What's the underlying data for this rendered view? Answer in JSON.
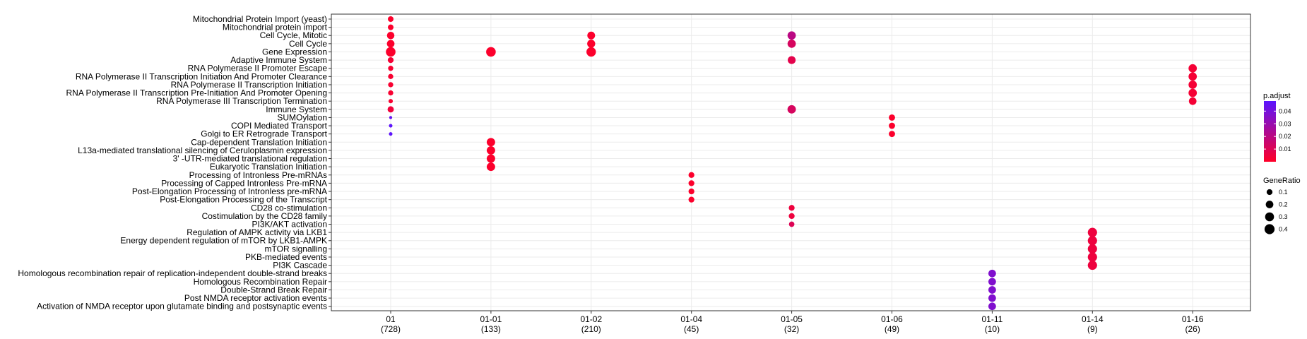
{
  "chart_data": {
    "type": "scatter",
    "title": "",
    "xlabel": "",
    "ylabel": "",
    "grid": true,
    "legend_placement": "right",
    "x_categories": [
      {
        "label": "01",
        "count": "(728)"
      },
      {
        "label": "01-01",
        "count": "(133)"
      },
      {
        "label": "01-02",
        "count": "(210)"
      },
      {
        "label": "01-04",
        "count": "(45)"
      },
      {
        "label": "01-05",
        "count": "(32)"
      },
      {
        "label": "01-06",
        "count": "(49)"
      },
      {
        "label": "01-11",
        "count": "(10)"
      },
      {
        "label": "01-14",
        "count": "(9)"
      },
      {
        "label": "01-16",
        "count": "(26)"
      }
    ],
    "y_categories": [
      "Mitochondrial Protein Import (yeast)",
      "Mitochondrial protein import",
      "Cell Cycle, Mitotic",
      "Cell Cycle",
      "Gene Expression",
      "Adaptive Immune System",
      "RNA Polymerase II Promoter Escape",
      "RNA Polymerase II Transcription Initiation And Promoter Clearance",
      "RNA Polymerase II Transcription Initiation",
      "RNA Polymerase II Transcription Pre-Initiation And Promoter Opening",
      "RNA Polymerase III Transcription Termination",
      "Immune System",
      "SUMOylation",
      "COPI Mediated Transport",
      "Golgi to ER Retrograde Transport",
      "Cap-dependent Translation Initiation",
      "L13a-mediated translational silencing of Ceruloplasmin expression",
      "3' -UTR-mediated translational regulation",
      "Eukaryotic Translation Initiation",
      "Processing of Intronless Pre-mRNAs",
      "Processing of Capped Intronless Pre-mRNA",
      "Post-Elongation Processing of Intronless pre-mRNA",
      "Post-Elongation Processing of the Transcript",
      "CD28 co-stimulation",
      "Costimulation by the CD28 family",
      "PI3K/AKT activation",
      "Regulation of AMPK activity via LKB1",
      "Energy dependent regulation of mTOR by LKB1-AMPK",
      "mTOR signalling",
      "PKB-mediated events",
      "PI3K Cascade",
      "Homologous recombination repair of replication-independent double-strand breaks",
      "Homologous Recombination Repair",
      "Double-Strand Break Repair",
      "Post NMDA receptor activation events",
      "Activation of NMDA receptor upon glutamate binding and postsynaptic events"
    ],
    "points": [
      {
        "x": "01",
        "y": "Mitochondrial Protein Import (yeast)",
        "gene_ratio": 0.09,
        "p_adjust": 0.001
      },
      {
        "x": "01",
        "y": "Mitochondrial protein import",
        "gene_ratio": 0.09,
        "p_adjust": 0.001
      },
      {
        "x": "01",
        "y": "Cell Cycle, Mitotic",
        "gene_ratio": 0.19,
        "p_adjust": 0.001
      },
      {
        "x": "01",
        "y": "Cell Cycle",
        "gene_ratio": 0.2,
        "p_adjust": 0.001
      },
      {
        "x": "01",
        "y": "Gene Expression",
        "gene_ratio": 0.36,
        "p_adjust": 0.001
      },
      {
        "x": "01",
        "y": "Adaptive Immune System",
        "gene_ratio": 0.1,
        "p_adjust": 0.003
      },
      {
        "x": "01",
        "y": "RNA Polymerase II Promoter Escape",
        "gene_ratio": 0.07,
        "p_adjust": 0.002
      },
      {
        "x": "01",
        "y": "RNA Polymerase II Transcription Initiation And Promoter Clearance",
        "gene_ratio": 0.07,
        "p_adjust": 0.002
      },
      {
        "x": "01",
        "y": "RNA Polymerase II Transcription Initiation",
        "gene_ratio": 0.07,
        "p_adjust": 0.002
      },
      {
        "x": "01",
        "y": "RNA Polymerase II Transcription Pre-Initiation And Promoter Opening",
        "gene_ratio": 0.07,
        "p_adjust": 0.002
      },
      {
        "x": "01",
        "y": "RNA Polymerase III Transcription Termination",
        "gene_ratio": 0.04,
        "p_adjust": 0.002
      },
      {
        "x": "01",
        "y": "Immune System",
        "gene_ratio": 0.12,
        "p_adjust": 0.004
      },
      {
        "x": "01",
        "y": "SUMOylation",
        "gene_ratio": 0.01,
        "p_adjust": 0.045
      },
      {
        "x": "01",
        "y": "COPI Mediated Transport",
        "gene_ratio": 0.02,
        "p_adjust": 0.047
      },
      {
        "x": "01",
        "y": "Golgi to ER Retrograde Transport",
        "gene_ratio": 0.02,
        "p_adjust": 0.047
      },
      {
        "x": "01-01",
        "y": "Gene Expression",
        "gene_ratio": 0.36,
        "p_adjust": 0.001
      },
      {
        "x": "01-01",
        "y": "Cap-dependent Translation Initiation",
        "gene_ratio": 0.26,
        "p_adjust": 0.001
      },
      {
        "x": "01-01",
        "y": "L13a-mediated translational silencing of Ceruloplasmin expression",
        "gene_ratio": 0.26,
        "p_adjust": 0.001
      },
      {
        "x": "01-01",
        "y": "3' -UTR-mediated translational regulation",
        "gene_ratio": 0.26,
        "p_adjust": 0.001
      },
      {
        "x": "01-01",
        "y": "Eukaryotic Translation Initiation",
        "gene_ratio": 0.26,
        "p_adjust": 0.001
      },
      {
        "x": "01-02",
        "y": "Cell Cycle, Mitotic",
        "gene_ratio": 0.21,
        "p_adjust": 0.001
      },
      {
        "x": "01-02",
        "y": "Cell Cycle",
        "gene_ratio": 0.23,
        "p_adjust": 0.001
      },
      {
        "x": "01-02",
        "y": "Gene Expression",
        "gene_ratio": 0.35,
        "p_adjust": 0.001
      },
      {
        "x": "01-04",
        "y": "Processing of Intronless Pre-mRNAs",
        "gene_ratio": 0.1,
        "p_adjust": 0.001
      },
      {
        "x": "01-04",
        "y": "Processing of Capped Intronless Pre-mRNA",
        "gene_ratio": 0.1,
        "p_adjust": 0.001
      },
      {
        "x": "01-04",
        "y": "Post-Elongation Processing of Intronless pre-mRNA",
        "gene_ratio": 0.1,
        "p_adjust": 0.001
      },
      {
        "x": "01-04",
        "y": "Post-Elongation Processing of the Transcript",
        "gene_ratio": 0.1,
        "p_adjust": 0.001
      },
      {
        "x": "01-05",
        "y": "Cell Cycle, Mitotic",
        "gene_ratio": 0.25,
        "p_adjust": 0.02
      },
      {
        "x": "01-05",
        "y": "Cell Cycle",
        "gene_ratio": 0.25,
        "p_adjust": 0.012
      },
      {
        "x": "01-05",
        "y": "Adaptive Immune System",
        "gene_ratio": 0.22,
        "p_adjust": 0.008
      },
      {
        "x": "01-05",
        "y": "Immune System",
        "gene_ratio": 0.26,
        "p_adjust": 0.012
      },
      {
        "x": "01-05",
        "y": "CD28 co-stimulation",
        "gene_ratio": 0.1,
        "p_adjust": 0.005
      },
      {
        "x": "01-05",
        "y": "Costimulation by the CD28 family",
        "gene_ratio": 0.1,
        "p_adjust": 0.005
      },
      {
        "x": "01-05",
        "y": "PI3K/AKT activation",
        "gene_ratio": 0.08,
        "p_adjust": 0.01
      },
      {
        "x": "01-06",
        "y": "SUMOylation",
        "gene_ratio": 0.12,
        "p_adjust": 0.001
      },
      {
        "x": "01-06",
        "y": "COPI Mediated Transport",
        "gene_ratio": 0.12,
        "p_adjust": 0.001
      },
      {
        "x": "01-06",
        "y": "Golgi to ER Retrograde Transport",
        "gene_ratio": 0.12,
        "p_adjust": 0.001
      },
      {
        "x": "01-11",
        "y": "Homologous recombination repair of replication-independent double-strand breaks",
        "gene_ratio": 0.2,
        "p_adjust": 0.037
      },
      {
        "x": "01-11",
        "y": "Homologous Recombination Repair",
        "gene_ratio": 0.2,
        "p_adjust": 0.037
      },
      {
        "x": "01-11",
        "y": "Double-Strand Break Repair",
        "gene_ratio": 0.2,
        "p_adjust": 0.037
      },
      {
        "x": "01-11",
        "y": "Post NMDA receptor activation events",
        "gene_ratio": 0.2,
        "p_adjust": 0.037
      },
      {
        "x": "01-11",
        "y": "Activation of NMDA receptor upon glutamate binding and postsynaptic events",
        "gene_ratio": 0.2,
        "p_adjust": 0.037
      },
      {
        "x": "01-14",
        "y": "Regulation of AMPK activity via LKB1",
        "gene_ratio": 0.33,
        "p_adjust": 0.005
      },
      {
        "x": "01-14",
        "y": "Energy dependent regulation of mTOR by LKB1-AMPK",
        "gene_ratio": 0.33,
        "p_adjust": 0.005
      },
      {
        "x": "01-14",
        "y": "mTOR signalling",
        "gene_ratio": 0.33,
        "p_adjust": 0.005
      },
      {
        "x": "01-14",
        "y": "PKB-mediated events",
        "gene_ratio": 0.33,
        "p_adjust": 0.005
      },
      {
        "x": "01-14",
        "y": "PI3K Cascade",
        "gene_ratio": 0.33,
        "p_adjust": 0.005
      },
      {
        "x": "01-16",
        "y": "RNA Polymerase II Promoter Escape",
        "gene_ratio": 0.25,
        "p_adjust": 0.003
      },
      {
        "x": "01-16",
        "y": "RNA Polymerase II Transcription Initiation And Promoter Clearance",
        "gene_ratio": 0.25,
        "p_adjust": 0.003
      },
      {
        "x": "01-16",
        "y": "RNA Polymerase II Transcription Initiation",
        "gene_ratio": 0.25,
        "p_adjust": 0.003
      },
      {
        "x": "01-16",
        "y": "RNA Polymerase II Transcription Pre-Initiation And Promoter Opening",
        "gene_ratio": 0.25,
        "p_adjust": 0.003
      },
      {
        "x": "01-16",
        "y": "RNA Polymerase III Transcription Termination",
        "gene_ratio": 0.2,
        "p_adjust": 0.003
      }
    ],
    "color_legend": {
      "title": "p.adjust",
      "ticks": [
        0.04,
        0.03,
        0.02,
        0.01
      ],
      "tick_labels": [
        "0.04",
        "0.03",
        "0.02",
        "0.01"
      ],
      "range": [
        0.0,
        0.048
      ],
      "low_color": "#ff0028",
      "high_color": "#5a14ff"
    },
    "size_legend": {
      "title": "GeneRatio",
      "values": [
        0.1,
        0.2,
        0.3,
        0.4
      ],
      "labels": [
        "0.1",
        "0.2",
        "0.3",
        "0.4"
      ]
    }
  }
}
